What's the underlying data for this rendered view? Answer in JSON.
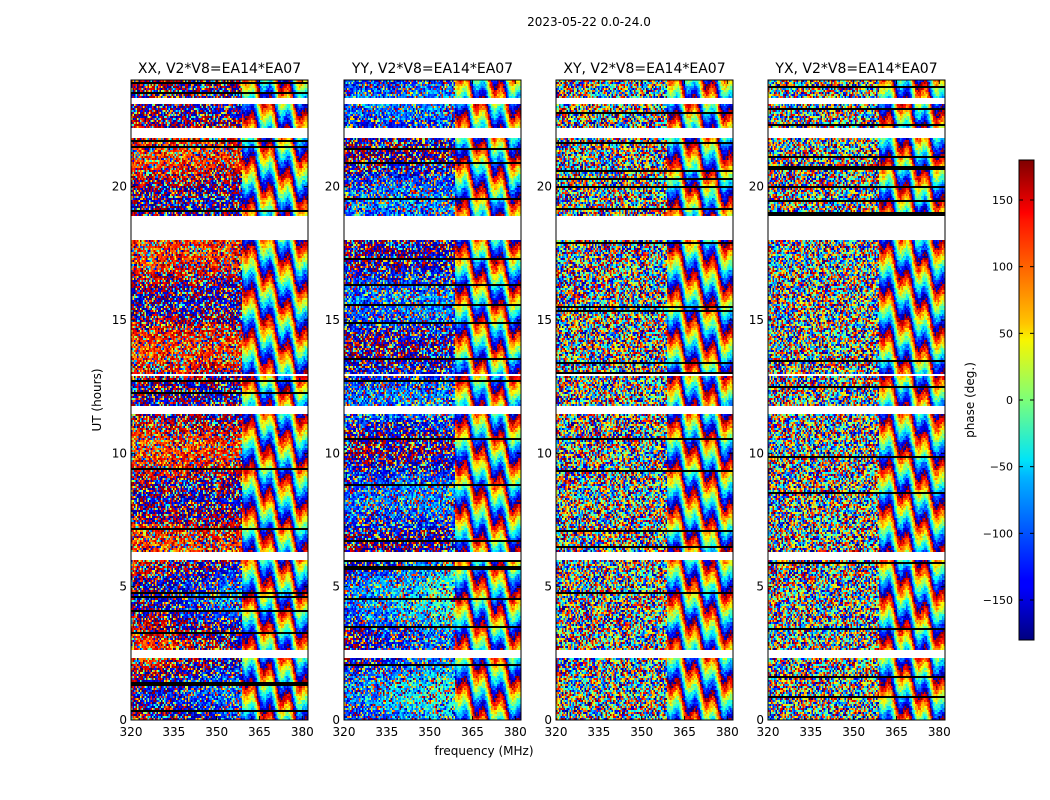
{
  "chart_data": {
    "type": "heatmap",
    "suptitle": "2023-05-22 0.0-24.0",
    "xlabel": "frequency (MHz)",
    "ylabel": "UT (hours)",
    "xlim": [
      320,
      382
    ],
    "ylim": [
      0,
      24
    ],
    "xticks": [
      320,
      335,
      350,
      365,
      380
    ],
    "yticks": [
      0,
      5,
      10,
      15,
      20
    ],
    "panels": [
      {
        "title": "XX, V2*V8=EA14*EA07",
        "base_phase": 150,
        "coherent": true
      },
      {
        "title": "YY, V2*V8=EA14*EA07",
        "base_phase": -140,
        "coherent": true
      },
      {
        "title": "XY, V2*V8=EA14*EA07",
        "base_phase": 0,
        "coherent": false
      },
      {
        "title": "YX, V2*V8=EA14*EA07",
        "base_phase": 0,
        "coherent": false
      }
    ],
    "flagged_ut_ranges": [
      [
        18.0,
        18.9
      ],
      [
        21.8,
        22.2
      ],
      [
        23.1,
        23.3
      ],
      [
        12.9,
        13.0
      ],
      [
        11.5,
        11.75
      ],
      [
        6.0,
        6.3
      ],
      [
        2.35,
        2.6
      ]
    ],
    "colorbar": {
      "label": "phase (deg.)",
      "range": [
        -180,
        180
      ],
      "ticks": [
        150,
        100,
        50,
        0,
        -50,
        -100,
        -150
      ],
      "tick_labels": [
        "150",
        "100",
        "50",
        "0",
        "−50",
        "−100",
        "−150"
      ],
      "colormap": "jet"
    }
  }
}
